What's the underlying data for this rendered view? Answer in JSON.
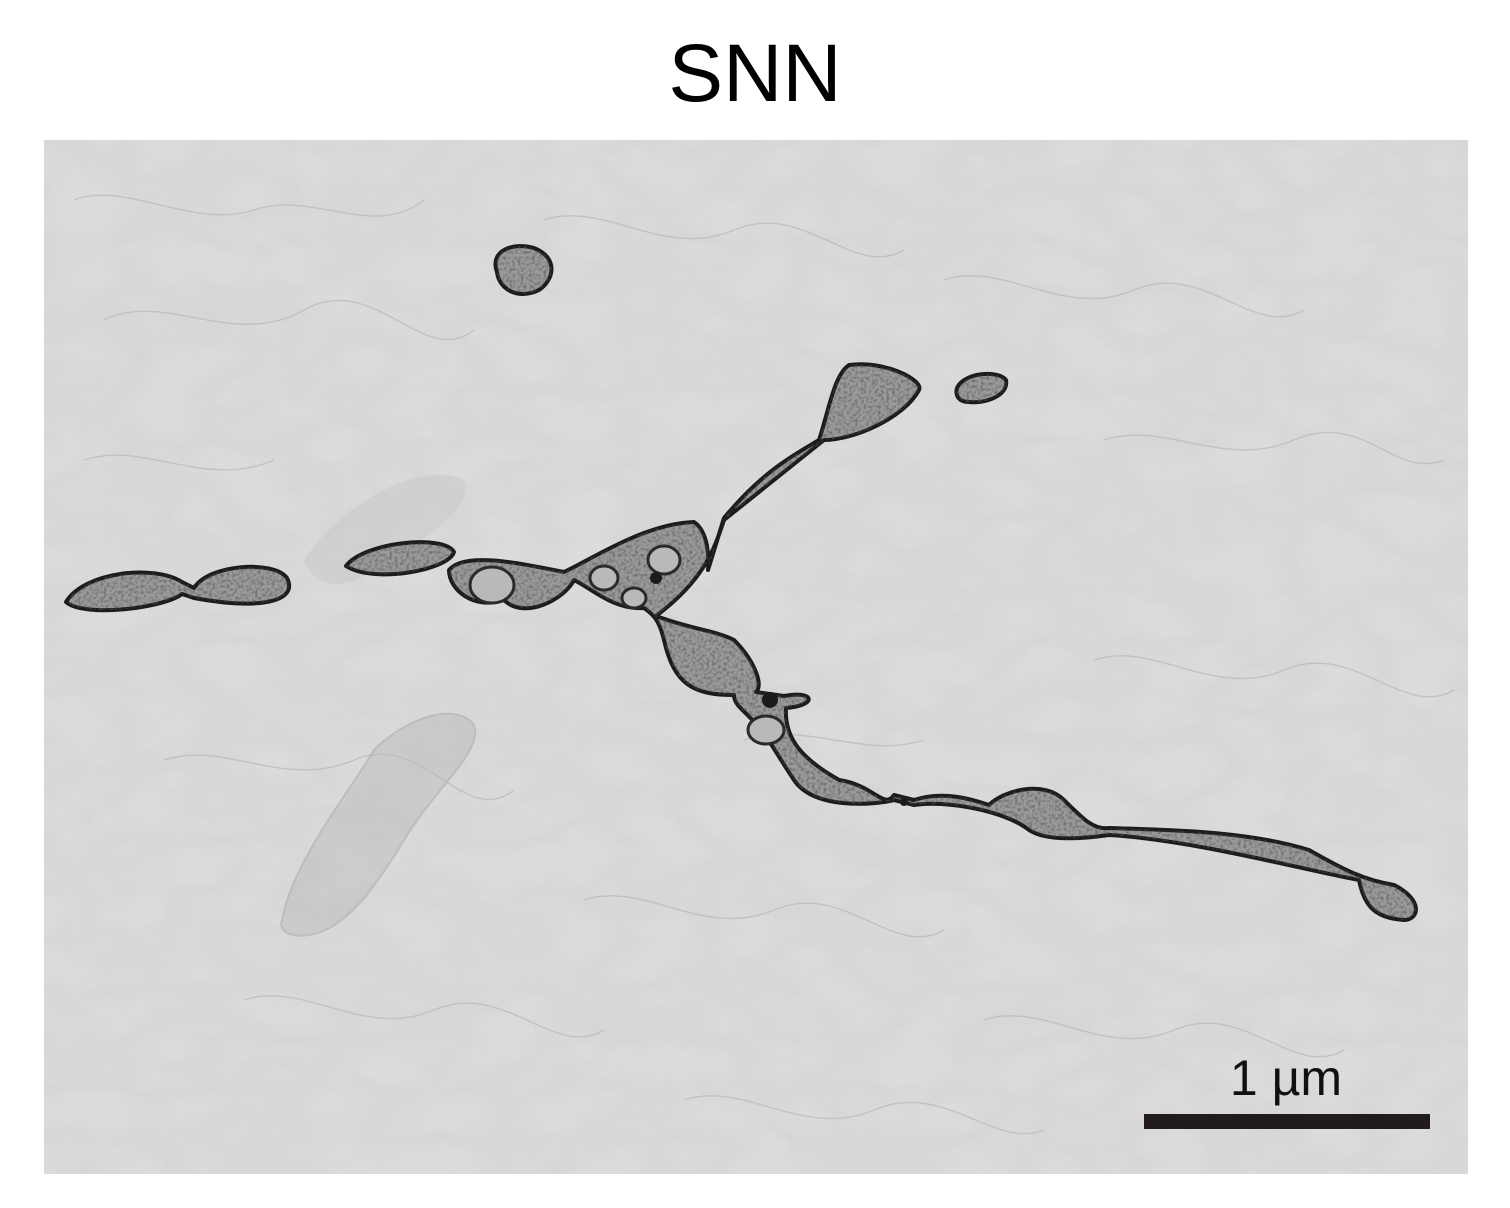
{
  "figure": {
    "title": "SNN",
    "scale_bar_label": "1 µm"
  },
  "colors": {
    "background": "#ffffff",
    "micrograph_base": "#e8e8e8",
    "organelle_fill": "#9a9a9a",
    "organelle_outline": "#1b1b1b",
    "scale_bar": "#211b1b"
  }
}
